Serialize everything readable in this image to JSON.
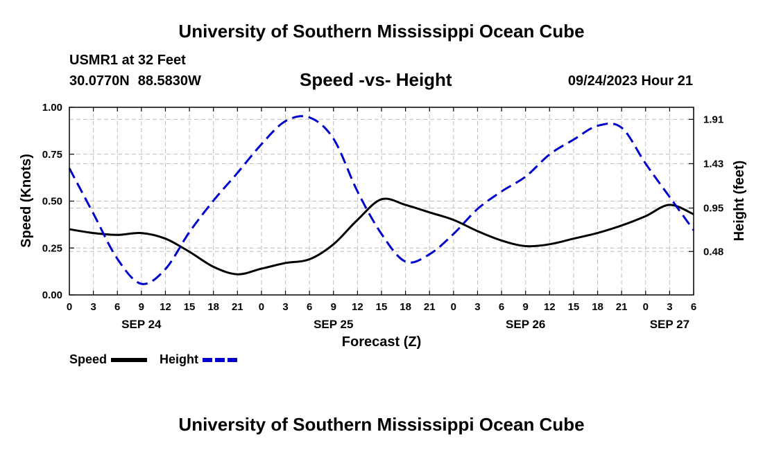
{
  "header": {
    "title": "University of Southern Mississippi Ocean Cube",
    "station": "USMR1 at 32 Feet",
    "lat": "30.0770N",
    "lon": "88.5830W",
    "timestamp": "09/24/2023 Hour 21"
  },
  "footer": {
    "title": "University of Southern Mississippi Ocean Cube"
  },
  "chart_data": {
    "type": "line",
    "title": "Speed -vs- Height",
    "xlabel": "Forecast (Z)",
    "ylabel": "Speed (Knots)",
    "y2label": "Height (feet)",
    "ylim": [
      0,
      1
    ],
    "y2lim": [
      0.01,
      2.04
    ],
    "yticks": [
      "0.00",
      "0.25",
      "0.50",
      "0.75",
      "1.00"
    ],
    "y2ticks": [
      "0.48",
      "0.95",
      "1.43",
      "1.91"
    ],
    "x_hours": [
      0,
      3,
      6,
      9,
      12,
      15,
      18,
      21,
      24,
      27,
      30,
      33,
      36,
      39,
      42,
      45,
      48,
      51,
      54,
      57,
      60,
      63,
      66,
      69,
      72,
      75,
      78
    ],
    "x_tick_labels": [
      "0",
      "3",
      "6",
      "9",
      "12",
      "15",
      "18",
      "21",
      "0",
      "3",
      "6",
      "9",
      "12",
      "15",
      "18",
      "21",
      "0",
      "3",
      "6",
      "9",
      "12",
      "15",
      "18",
      "21",
      "0",
      "3",
      "6"
    ],
    "date_labels": [
      {
        "hour": 9,
        "label": "SEP 24"
      },
      {
        "hour": 33,
        "label": "SEP 25"
      },
      {
        "hour": 57,
        "label": "SEP 26"
      },
      {
        "hour": 75,
        "label": "SEP 27"
      }
    ],
    "legend_position": "bottom-left",
    "series": [
      {
        "name": "Speed",
        "axis": "left",
        "color": "#000000",
        "dash": "solid",
        "x": [
          0,
          3,
          6,
          9,
          12,
          15,
          18,
          21,
          24,
          27,
          30,
          33,
          36,
          39,
          42,
          45,
          48,
          51,
          54,
          57,
          60,
          63,
          66,
          69,
          72,
          75,
          78
        ],
        "values": [
          0.35,
          0.33,
          0.32,
          0.33,
          0.3,
          0.23,
          0.15,
          0.11,
          0.14,
          0.17,
          0.19,
          0.27,
          0.4,
          0.51,
          0.48,
          0.44,
          0.4,
          0.34,
          0.29,
          0.26,
          0.27,
          0.3,
          0.33,
          0.37,
          0.42,
          0.48,
          0.43
        ]
      },
      {
        "name": "Height",
        "axis": "right",
        "color": "#0000cc",
        "dash": "dashed",
        "x": [
          0,
          3,
          6,
          9,
          12,
          15,
          18,
          21,
          24,
          27,
          30,
          33,
          36,
          39,
          42,
          45,
          48,
          51,
          54,
          57,
          60,
          63,
          66,
          69,
          72,
          75,
          78
        ],
        "values": [
          1.38,
          0.89,
          0.4,
          0.13,
          0.29,
          0.69,
          1.03,
          1.33,
          1.64,
          1.89,
          1.93,
          1.7,
          1.13,
          0.67,
          0.37,
          0.45,
          0.67,
          0.94,
          1.13,
          1.29,
          1.53,
          1.69,
          1.84,
          1.82,
          1.43,
          1.07,
          0.71
        ]
      }
    ]
  }
}
